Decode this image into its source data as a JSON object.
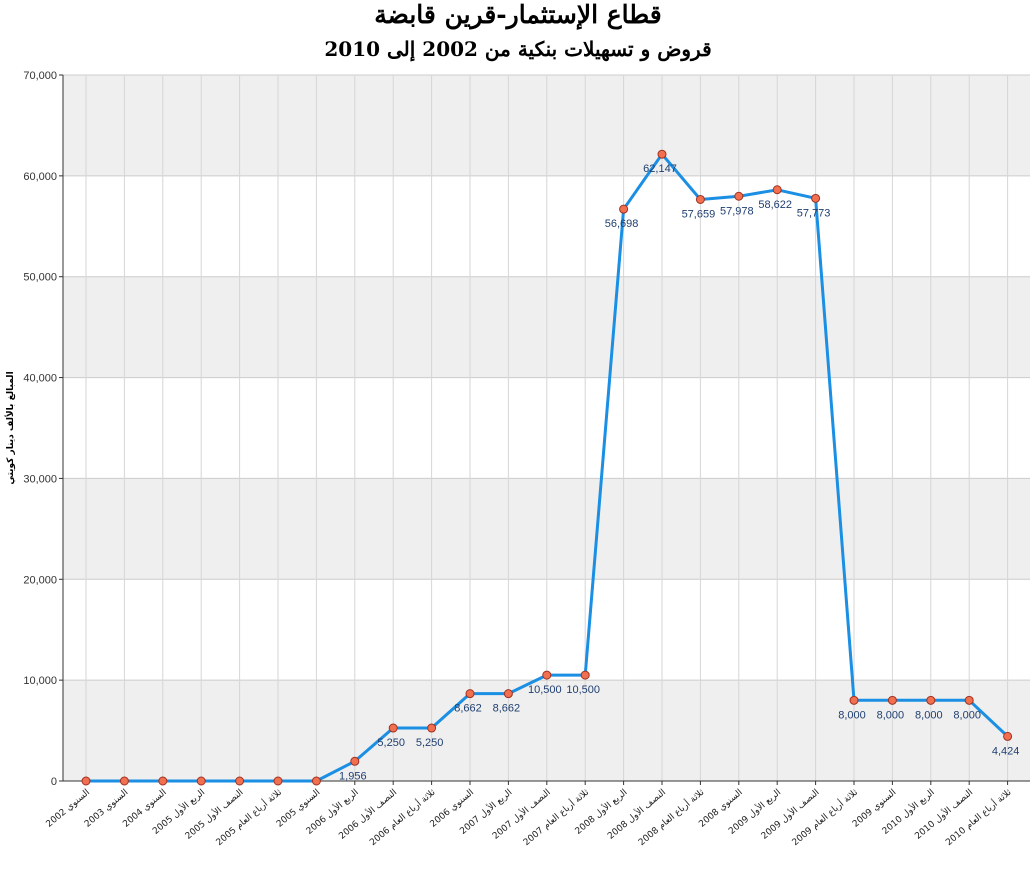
{
  "chart_data": {
    "type": "line",
    "title": "قطاع الإستثمار-قرين قابضة",
    "subtitle": "قروض و تسهيلات بنكية من 2002 إلى 2010",
    "ylabel": "المبالغ بالألف دينار كويتي",
    "xlabel": "",
    "ylim": [
      0,
      70000
    ],
    "yticks": [
      "0",
      "10,000",
      "20,000",
      "30,000",
      "40,000",
      "50,000",
      "60,000",
      "70,000"
    ],
    "ytick_values": [
      0,
      10000,
      20000,
      30000,
      40000,
      50000,
      60000,
      70000
    ],
    "grid": true,
    "legend": "none",
    "colors": {
      "line": "#1a8fe3",
      "marker_fill": "#f07050",
      "marker_edge": "#a03020",
      "band": "#efefef",
      "gridline": "#cccccc"
    },
    "categories": [
      "السنوي 2002",
      "السنوي 2003",
      "السنوي 2004",
      "الربع الأول 2005",
      "النصف الأول 2005",
      "ثلاثة أرباع العام 2005",
      "السنوي 2005",
      "الربع الأول 2006",
      "النصف الأول 2006",
      "ثلاثة أرباع العام 2006",
      "السنوي 2006",
      "الربع الأول 2007",
      "النصف الأول 2007",
      "ثلاثة أرباع العام 2007",
      "الربع الأول 2008",
      "النصف الأول 2008",
      "ثلاثة أرباع العام 2008",
      "السنوي 2008",
      "الربع الأول 2009",
      "النصف الأول 2009",
      "ثلاثة أرباع العام 2009",
      "السنوي 2009",
      "الربع الأول 2010",
      "النصف الأول 2010",
      "ثلاثة أرباع العام 2010"
    ],
    "values": [
      0,
      0,
      0,
      0,
      0,
      0,
      0,
      1956,
      5250,
      5250,
      8662,
      8662,
      10500,
      10500,
      56698,
      62147,
      57659,
      57978,
      58622,
      57773,
      8000,
      8000,
      8000,
      8000,
      4424
    ],
    "data_labels": [
      "",
      "",
      "",
      "",
      "",
      "",
      "",
      "1,956",
      "5,250",
      "5,250",
      "8,662",
      "8,662",
      "10,500",
      "10,500",
      "56,698",
      "62,147",
      "57,659",
      "57,978",
      "58,622",
      "57,773",
      "8,000",
      "8,000",
      "8,000",
      "8,000",
      "4,424"
    ]
  }
}
